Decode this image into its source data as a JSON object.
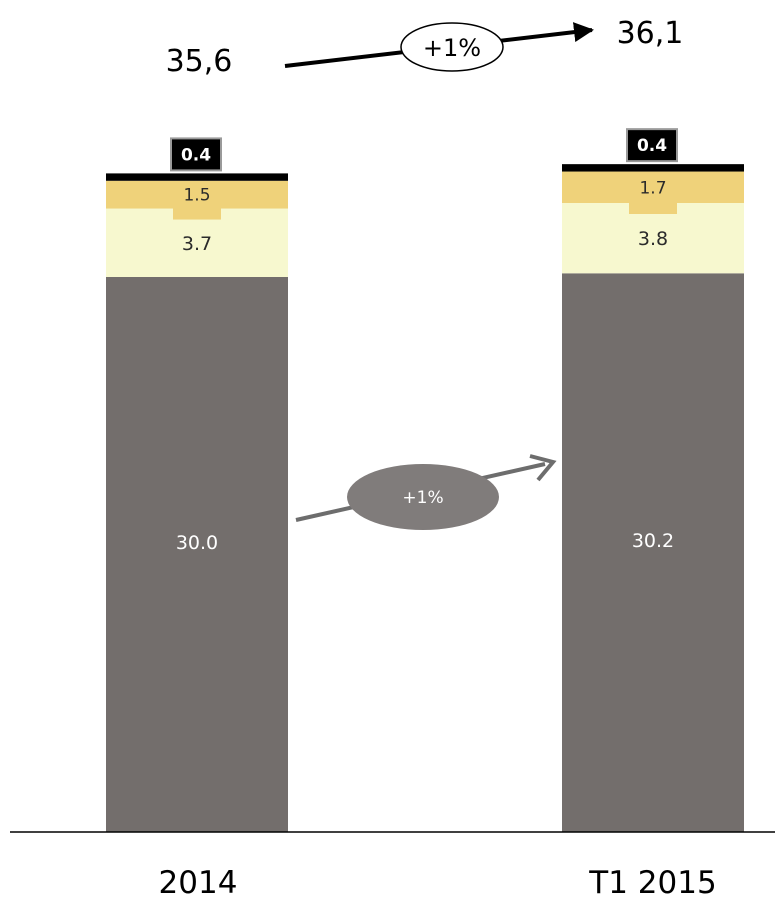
{
  "chart_data": {
    "type": "bar",
    "stacked": true,
    "categories": [
      "2014",
      "T1 2015"
    ],
    "series": [
      {
        "values": [
          30.0,
          30.2
        ],
        "labels": [
          "30.0",
          "30.2"
        ],
        "color": "#736e6c"
      },
      {
        "values": [
          3.7,
          3.8
        ],
        "labels": [
          "3.7",
          "3.8"
        ],
        "color": "#f7f8cf"
      },
      {
        "values": [
          1.5,
          1.7
        ],
        "labels": [
          "1.5",
          "1.7"
        ],
        "color": "#efd27a"
      },
      {
        "values": [
          0.4,
          0.4
        ],
        "labels": [
          "0.4",
          "0.4"
        ],
        "color": "#000000"
      }
    ],
    "totals": [
      "35,6",
      "36,1"
    ],
    "annotations": {
      "total_change": "+1%",
      "base_change": "+1%"
    }
  }
}
